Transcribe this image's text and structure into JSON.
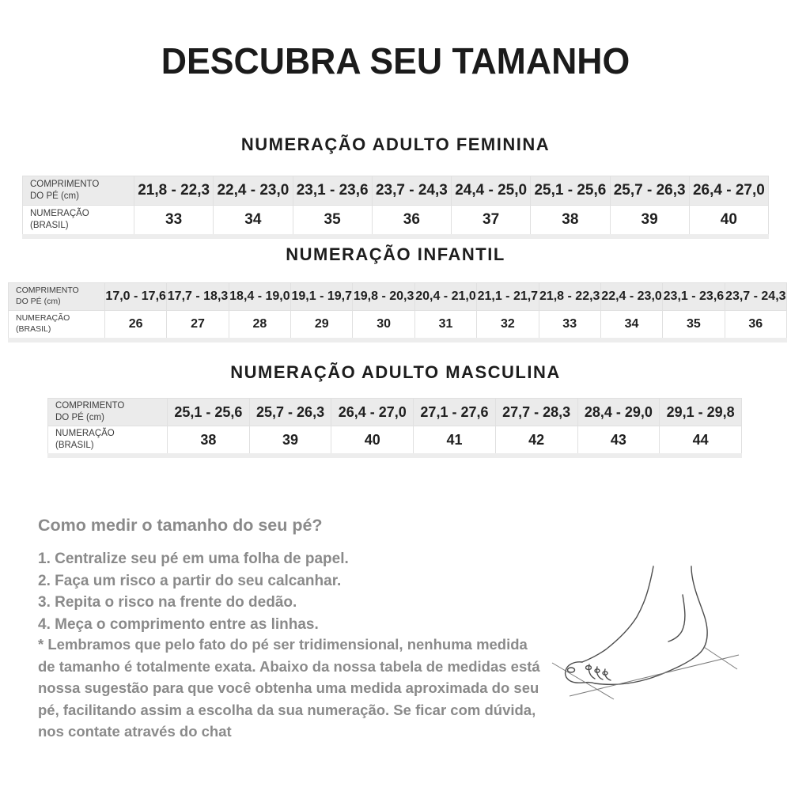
{
  "title": "DESCUBRA SEU TAMANHO",
  "tables": [
    {
      "heading": "NUMERAÇÃO ADULTO FEMININA",
      "length_label": "COMPRIMENTO\nDO PÉ (cm)",
      "size_label": "NUMERAÇÃO\n(BRASIL)",
      "lengths": [
        "21,8 - 22,3",
        "22,4 - 23,0",
        "23,1 - 23,6",
        "23,7 - 24,3",
        "24,4 - 25,0",
        "25,1 - 25,6",
        "25,7 - 26,3",
        "26,4 - 27,0"
      ],
      "sizes": [
        "33",
        "34",
        "35",
        "36",
        "37",
        "38",
        "39",
        "40"
      ]
    },
    {
      "heading": "NUMERAÇÃO INFANTIL",
      "length_label": "COMPRIMENTO\nDO PÉ (cm)",
      "size_label": "NUMERAÇÃO\n(BRASIL)",
      "lengths": [
        "17,0 - 17,6",
        "17,7 - 18,3",
        "18,4 - 19,0",
        "19,1 - 19,7",
        "19,8 - 20,3",
        "20,4 - 21,0",
        "21,1 - 21,7",
        "21,8 - 22,3",
        "22,4 - 23,0",
        "23,1 - 23,6",
        "23,7 - 24,3"
      ],
      "sizes": [
        "26",
        "27",
        "28",
        "29",
        "30",
        "31",
        "32",
        "33",
        "34",
        "35",
        "36"
      ]
    },
    {
      "heading": "NUMERAÇÃO ADULTO MASCULINA",
      "length_label": "COMPRIMENTO\nDO PÉ (cm)",
      "size_label": "NUMERAÇÃO\n(BRASIL)",
      "lengths": [
        "25,1 - 25,6",
        "25,7 - 26,3",
        "26,4 - 27,0",
        "27,1 - 27,6",
        "27,7 - 28,3",
        "28,4 - 29,0",
        "29,1 - 29,8"
      ],
      "sizes": [
        "38",
        "39",
        "40",
        "41",
        "42",
        "43",
        "44"
      ]
    }
  ],
  "how_to": {
    "heading": "Como medir o tamanho do seu pé?",
    "steps": [
      "1. Centralize seu pé em uma folha de papel.",
      "2. Faça um risco a partir do seu calcanhar.",
      "3. Repita o risco na frente do dedão.",
      "4. Meça o comprimento entre as linhas."
    ]
  },
  "note": "* Lembramos que pelo fato do pé ser tridimensional, nenhuma medida de tamanho é totalmente exata. Abaixo da nossa tabela de medidas está nossa sugestão para que você obtenha uma medida aproximada do seu pé, facilitando assim a escolha da sua numeração. Se ficar com dúvida, nos contate através do chat",
  "icons": {
    "foot_illustration": "foot-measure-line-drawing"
  },
  "colors": {
    "header_bg": "#ebebeb",
    "border": "#e0e0e0",
    "text_dark": "#1e1e1e",
    "text_gray": "#8a8a8a"
  }
}
